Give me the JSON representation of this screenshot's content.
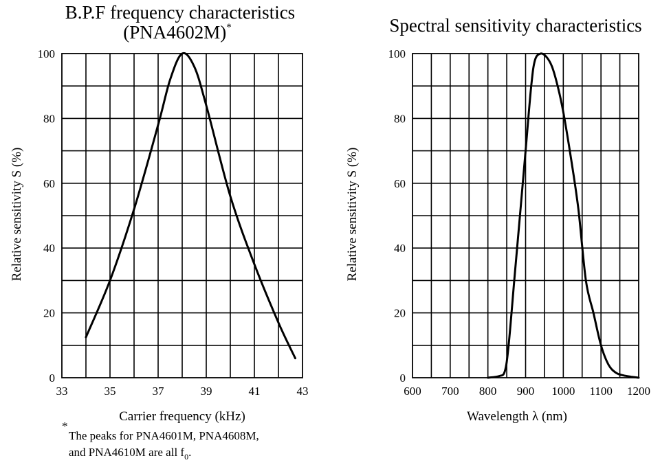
{
  "chart_data": [
    {
      "type": "line",
      "title": "B.P.F frequency characteristics",
      "subtitle": "(PNA4602M)",
      "subtitle_mark": "*",
      "xlabel": "Carrier  frequency  (kHz)",
      "ylabel": "Relative sensitivity    S  (%)",
      "xlim": [
        33,
        43
      ],
      "ylim": [
        0,
        100
      ],
      "x_ticks": [
        "33",
        "35",
        "37",
        "39",
        "41",
        "43"
      ],
      "y_ticks": [
        "0",
        "20",
        "40",
        "60",
        "80",
        "100"
      ],
      "x_grid_step": 1,
      "y_grid_step": 10,
      "series": [
        {
          "name": "PNA4602M",
          "x": [
            34.0,
            35.0,
            36.0,
            37.0,
            37.5,
            38.0,
            38.5,
            39.0,
            40.0,
            41.0,
            42.0,
            42.7
          ],
          "y": [
            12.5,
            30,
            52,
            78,
            92,
            100,
            96,
            84,
            56,
            35,
            17,
            6
          ]
        }
      ],
      "footnote_mark": "*",
      "footnote_line1": "The peaks for PNA4601M, PNA4608M,",
      "footnote_line2": "and PNA4610M are all f",
      "footnote_sub": "0",
      "footnote_end": "."
    },
    {
      "type": "line",
      "title": "Spectral sensitivity characteristics",
      "xlabel": "Wavelength    λ  (nm)",
      "ylabel": "Relative sensitivity    S  (%)",
      "xlim": [
        600,
        1200
      ],
      "ylim": [
        0,
        100
      ],
      "x_ticks": [
        "600",
        "700",
        "800",
        "900",
        "1000",
        "1100",
        "1200"
      ],
      "y_ticks": [
        "0",
        "20",
        "40",
        "60",
        "80",
        "100"
      ],
      "x_grid_step": 50,
      "y_grid_step": 10,
      "series": [
        {
          "name": "Spectral sensitivity",
          "x": [
            800,
            830,
            845,
            855,
            870,
            885,
            900,
            915,
            925,
            940,
            955,
            970,
            985,
            1000,
            1020,
            1040,
            1060,
            1080,
            1100,
            1120,
            1140,
            1160,
            1180,
            1200
          ],
          "y": [
            0,
            0.5,
            2,
            10,
            30,
            50,
            70,
            90,
            98,
            100,
            99,
            96,
            90,
            82,
            68,
            52,
            30,
            20,
            10,
            4,
            1.5,
            0.7,
            0.3,
            0
          ]
        }
      ]
    }
  ]
}
